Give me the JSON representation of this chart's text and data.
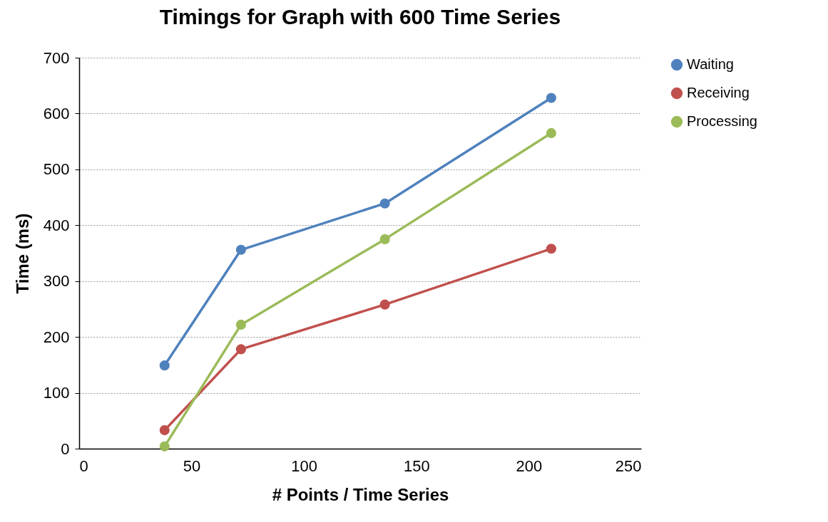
{
  "chart_data": {
    "type": "line",
    "title": "Timings for Graph with 600 Time Series",
    "xlabel": "# Points / Time Series",
    "ylabel": "Time (ms)",
    "x": [
      38,
      72,
      136,
      210
    ],
    "series": [
      {
        "name": "Waiting",
        "color": "#4f81bd",
        "values": [
          149,
          356,
          439,
          628
        ]
      },
      {
        "name": "Receiving",
        "color": "#c0504d",
        "values": [
          33,
          178,
          258,
          358
        ]
      },
      {
        "name": "Processing",
        "color": "#9bbb59",
        "values": [
          4,
          222,
          375,
          565
        ]
      }
    ],
    "xlim": [
      0,
      250
    ],
    "xticks": [
      0,
      50,
      100,
      150,
      200,
      250
    ],
    "ylim": [
      0,
      700
    ],
    "yticks": [
      0,
      100,
      200,
      300,
      400,
      500,
      600,
      700
    ],
    "grid": "y",
    "legend": "right",
    "marker": "circle",
    "line_style": "solid"
  }
}
